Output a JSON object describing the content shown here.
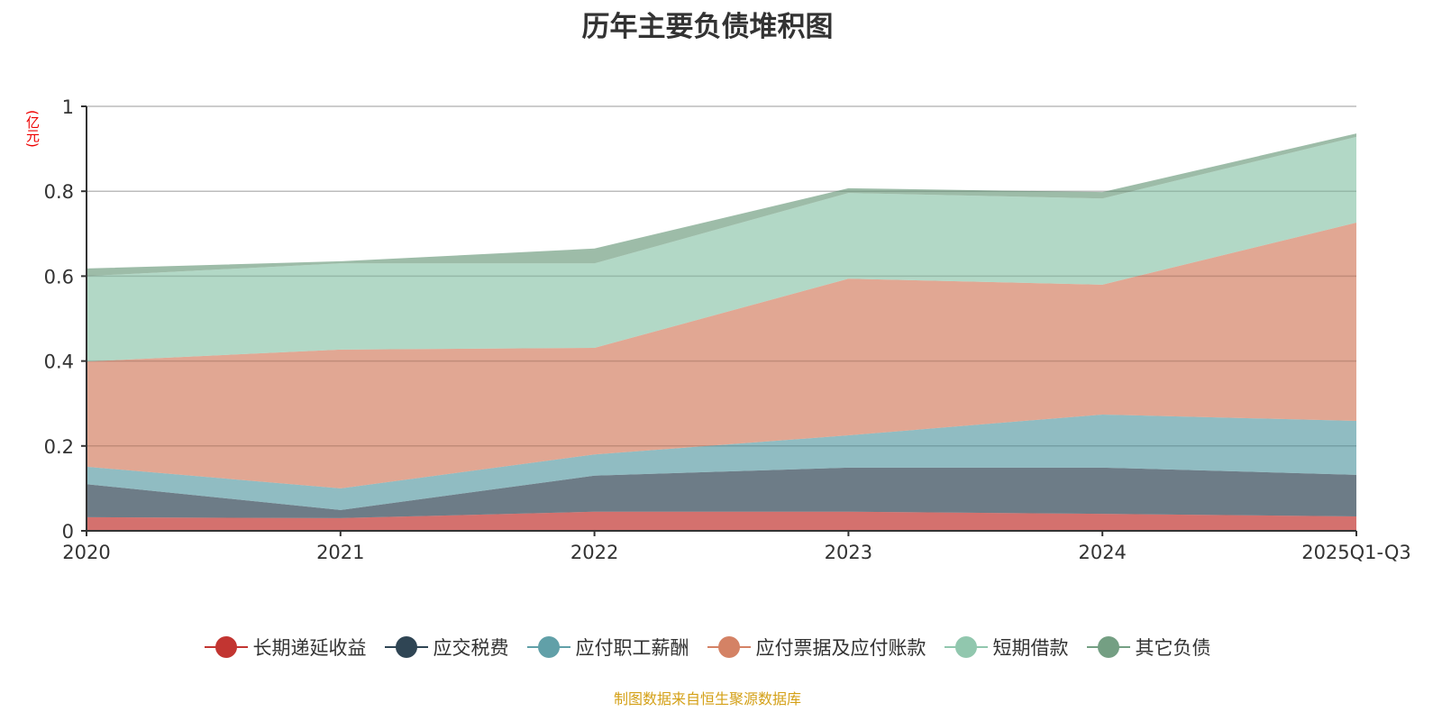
{
  "chart_data": {
    "type": "area",
    "stacked": true,
    "title": "历年主要负债堆积图",
    "ylabel": "(亿元)",
    "xlabel": "",
    "ylim": [
      0,
      1
    ],
    "yticks": [
      "0",
      "0.2",
      "0.4",
      "0.6",
      "0.8",
      "1"
    ],
    "ytick_values": [
      0,
      0.2,
      0.4,
      0.6,
      0.8,
      1
    ],
    "categories": [
      "2020",
      "2021",
      "2022",
      "2023",
      "2024",
      "2025Q1-Q3"
    ],
    "grid": true,
    "legend_position": "bottom",
    "series": [
      {
        "name": "长期递延收益",
        "color": "#c23531",
        "values": [
          0.032,
          0.03,
          0.045,
          0.045,
          0.04,
          0.034
        ]
      },
      {
        "name": "应交税费",
        "color": "#2f4554",
        "values": [
          0.078,
          0.019,
          0.085,
          0.104,
          0.109,
          0.098
        ]
      },
      {
        "name": "应付职工薪酬",
        "color": "#61a0a8",
        "values": [
          0.041,
          0.051,
          0.05,
          0.076,
          0.125,
          0.127
        ]
      },
      {
        "name": "应付票据及应付账款",
        "color": "#d48265",
        "values": [
          0.248,
          0.327,
          0.251,
          0.369,
          0.306,
          0.467
        ]
      },
      {
        "name": "短期借款",
        "color": "#91c7ae",
        "values": [
          0.201,
          0.203,
          0.199,
          0.202,
          0.203,
          0.202
        ]
      },
      {
        "name": "其它负债",
        "color": "#749f83",
        "values": [
          0.018,
          0.005,
          0.035,
          0.011,
          0.015,
          0.008
        ]
      }
    ]
  },
  "source": "制图数据来自恒生聚源数据库"
}
